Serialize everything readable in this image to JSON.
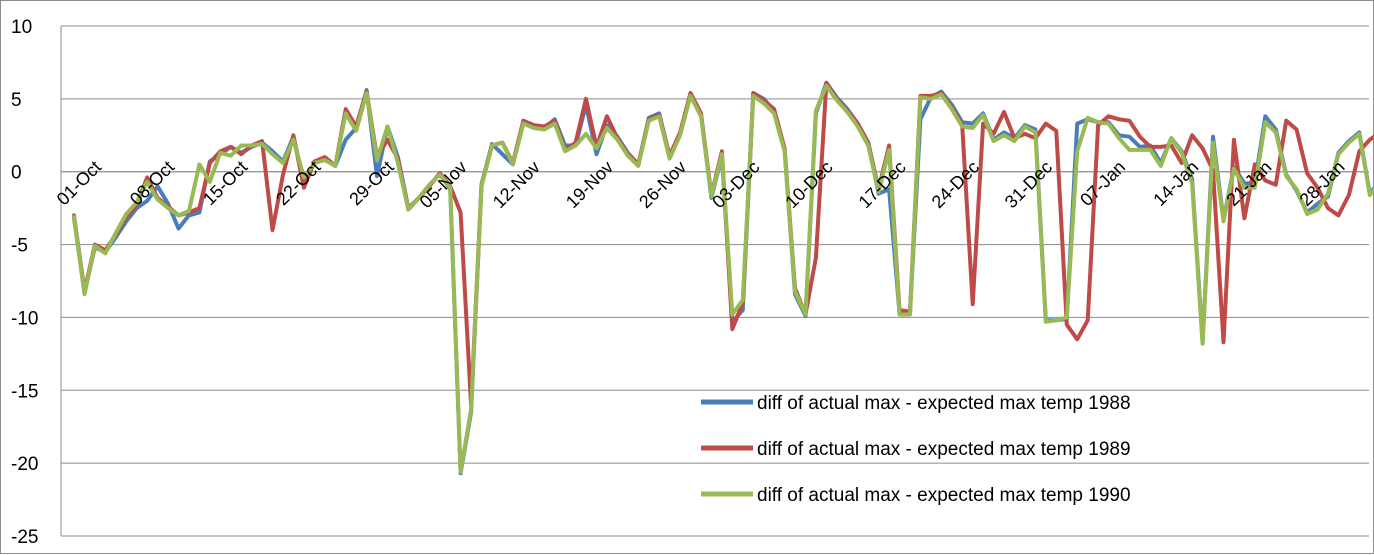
{
  "chart_data": {
    "type": "line",
    "x_tick_labels": [
      "01-Oct",
      "08-Oct",
      "15-Oct",
      "22-Oct",
      "29-Oct",
      "05-Nov",
      "12-Nov",
      "19-Nov",
      "26-Nov",
      "03-Dec",
      "10-Dec",
      "17-Dec",
      "24-Dec",
      "31-Dec",
      "07-Jan",
      "14-Jan",
      "21-Jan",
      "28-Jan"
    ],
    "x_start": "01-Oct",
    "x_end": "31-Jan",
    "ylim": [
      -25,
      10
    ],
    "y_ticks": [
      10,
      5,
      0,
      -5,
      -10,
      -15,
      -20,
      -25
    ],
    "grid": "horizontal",
    "legend_position": "bottom-right",
    "series": [
      {
        "name": "diff of actual max - expected max temp 1988",
        "color": "#4a7ebb",
        "values": [
          -3.2,
          -8.3,
          -5.2,
          -5.5,
          -4.5,
          -3.4,
          -2.5,
          -2.0,
          -1.0,
          -2.2,
          -3.9,
          -3.0,
          -2.8,
          0.7,
          1.2,
          1.7,
          1.3,
          1.7,
          2.0,
          1.4,
          0.7,
          2.4,
          -0.7,
          0.6,
          1.0,
          0.4,
          2.2,
          3.0,
          5.6,
          -0.3,
          3.1,
          1.0,
          -2.5,
          -1.8,
          -1.0,
          -0.1,
          -1.2,
          -20.7,
          -16.5,
          -0.9,
          1.9,
          1.2,
          0.5,
          3.4,
          3.1,
          3.0,
          3.6,
          1.8,
          1.8,
          4.6,
          1.2,
          3.2,
          2.4,
          1.3,
          0.5,
          3.7,
          4.0,
          1.0,
          2.6,
          5.3,
          3.9,
          -1.8,
          1.1,
          -10.3,
          -9.5,
          5.4,
          5.0,
          4.2,
          1.5,
          -8.4,
          -9.9,
          4.0,
          6.1,
          5.1,
          4.3,
          3.3,
          2.0,
          -1.5,
          -1.2,
          -9.7,
          -9.7,
          3.6,
          5.1,
          5.5,
          4.6,
          3.4,
          3.3,
          4.0,
          2.2,
          2.7,
          2.3,
          3.2,
          2.9,
          -10.2,
          -10.2,
          -10.1,
          3.3,
          3.6,
          3.4,
          3.4,
          2.5,
          2.4,
          1.7,
          1.8,
          0.6,
          2.3,
          1.4,
          -0.5,
          -11.7,
          2.4,
          -3.3,
          0.3,
          -0.8,
          -0.8,
          3.8,
          2.9,
          -0.2,
          -1.3,
          -2.8,
          -2.2,
          -1.7,
          1.3,
          2.1,
          2.7,
          -1.5,
          -0.6
        ]
      },
      {
        "name": "diff of actual max - expected max temp 1989",
        "color": "#be4b48",
        "values": [
          -3.0,
          -8.2,
          -5.0,
          -5.4,
          -4.3,
          -3.1,
          -2.3,
          -0.4,
          -1.8,
          -2.4,
          -3.0,
          -2.8,
          -2.5,
          0.6,
          1.4,
          1.7,
          1.2,
          1.8,
          2.1,
          -4.0,
          -0.2,
          2.5,
          -1.1,
          0.7,
          1.0,
          0.4,
          4.3,
          3.1,
          5.5,
          1.0,
          2.2,
          0.9,
          -2.6,
          -1.8,
          -1.0,
          -0.1,
          -1.0,
          -2.8,
          -16.0,
          -0.9,
          1.8,
          2.0,
          0.6,
          3.5,
          3.2,
          3.1,
          3.5,
          1.5,
          2.0,
          5.0,
          1.7,
          3.8,
          2.3,
          1.2,
          0.5,
          3.6,
          3.9,
          1.1,
          2.7,
          5.4,
          4.0,
          -1.6,
          1.4,
          -10.8,
          -9.0,
          5.4,
          4.9,
          4.3,
          1.6,
          -8.0,
          -9.8,
          -5.9,
          6.1,
          5.0,
          4.2,
          3.3,
          2.0,
          -1.2,
          1.8,
          -9.5,
          -9.6,
          5.2,
          5.2,
          5.4,
          4.4,
          3.2,
          -9.1,
          3.3,
          2.6,
          4.1,
          2.3,
          2.6,
          2.3,
          3.3,
          2.8,
          -10.5,
          -11.5,
          -10.2,
          3.2,
          3.8,
          3.6,
          3.5,
          2.4,
          1.7,
          1.7,
          1.8,
          0.6,
          2.5,
          1.6,
          0.1,
          -11.7,
          2.2,
          -3.2,
          0.5,
          -0.6,
          -0.9,
          3.5,
          2.9,
          -0.1,
          -1.1,
          -2.5,
          -3.0,
          -1.6,
          1.4,
          2.2,
          2.7,
          -0.3,
          0.5
        ]
      },
      {
        "name": "diff of actual max - expected max temp 1990",
        "color": "#98b954",
        "values": [
          -3.1,
          -8.4,
          -5.1,
          -5.6,
          -4.2,
          -2.9,
          -2.1,
          -0.7,
          -1.9,
          -2.5,
          -3.0,
          -2.7,
          0.5,
          -0.7,
          1.3,
          1.1,
          1.8,
          1.8,
          1.9,
          1.2,
          0.6,
          2.2,
          -0.4,
          0.6,
          0.8,
          0.4,
          4.0,
          2.8,
          5.4,
          0.8,
          3.1,
          0.6,
          -2.6,
          -1.8,
          -0.9,
          -0.2,
          -1.1,
          -20.6,
          -16.3,
          -1.0,
          1.8,
          2.0,
          0.5,
          3.3,
          3.0,
          2.9,
          3.3,
          1.4,
          1.8,
          2.6,
          1.6,
          3.0,
          2.2,
          1.1,
          0.4,
          3.5,
          3.8,
          0.9,
          2.5,
          5.2,
          3.8,
          -1.7,
          1.2,
          -9.8,
          -8.8,
          5.2,
          4.7,
          4.0,
          1.4,
          -8.2,
          -9.8,
          4.2,
          5.9,
          4.9,
          4.1,
          3.1,
          1.8,
          -1.4,
          1.5,
          -9.8,
          -9.8,
          5.1,
          5.0,
          5.3,
          4.3,
          3.1,
          3.0,
          3.9,
          2.1,
          2.5,
          2.1,
          3.1,
          2.7,
          -10.3,
          -10.2,
          -10.0,
          1.4,
          3.7,
          3.4,
          3.3,
          2.3,
          1.5,
          1.5,
          1.5,
          0.4,
          2.3,
          1.3,
          -0.8,
          -11.8,
          2.0,
          -3.4,
          0.2,
          -1.1,
          -1.1,
          3.4,
          2.7,
          -0.3,
          -1.2,
          -2.9,
          -2.6,
          -1.5,
          1.2,
          2.0,
          2.6,
          -1.6,
          -0.7
        ]
      }
    ]
  }
}
